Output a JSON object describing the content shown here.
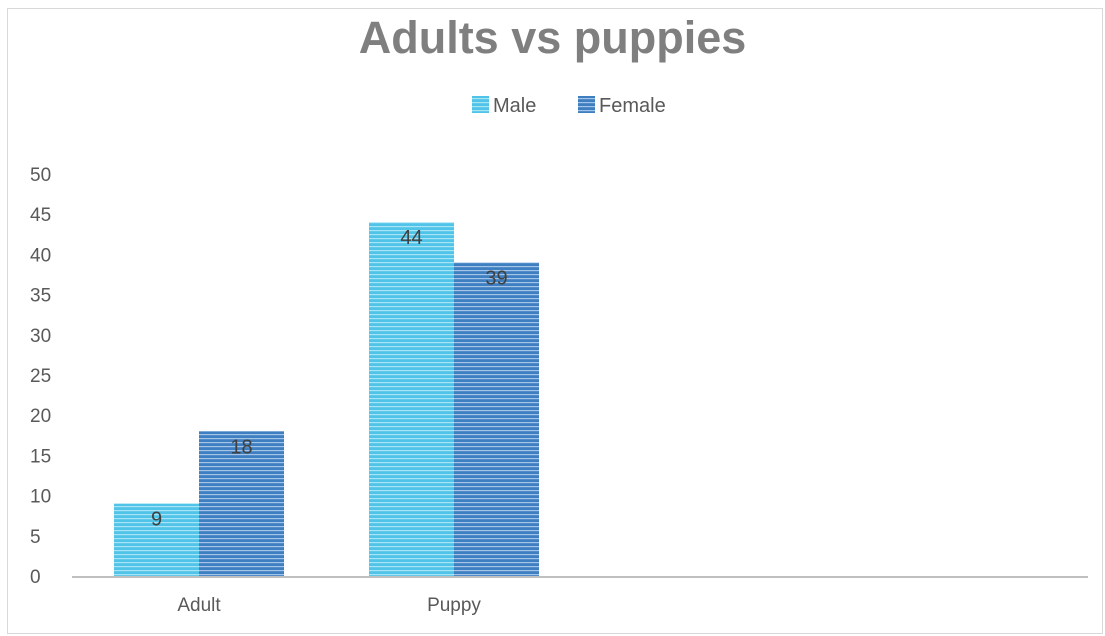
{
  "chart_data": {
    "type": "bar",
    "title": "Adults vs puppies",
    "categories": [
      "Adult",
      "Puppy"
    ],
    "series": [
      {
        "name": "Male",
        "values": [
          9,
          44
        ],
        "color": "#4fc3e8",
        "stripe": "#a8e3f6"
      },
      {
        "name": "Female",
        "values": [
          18,
          39
        ],
        "color": "#3d7fc0",
        "stripe": "#a3c4e6"
      }
    ],
    "ylim": [
      0,
      50
    ],
    "yticks": [
      0,
      5,
      10,
      15,
      20,
      25,
      30,
      35,
      40,
      45,
      50
    ],
    "grid": false,
    "legend": "top"
  }
}
